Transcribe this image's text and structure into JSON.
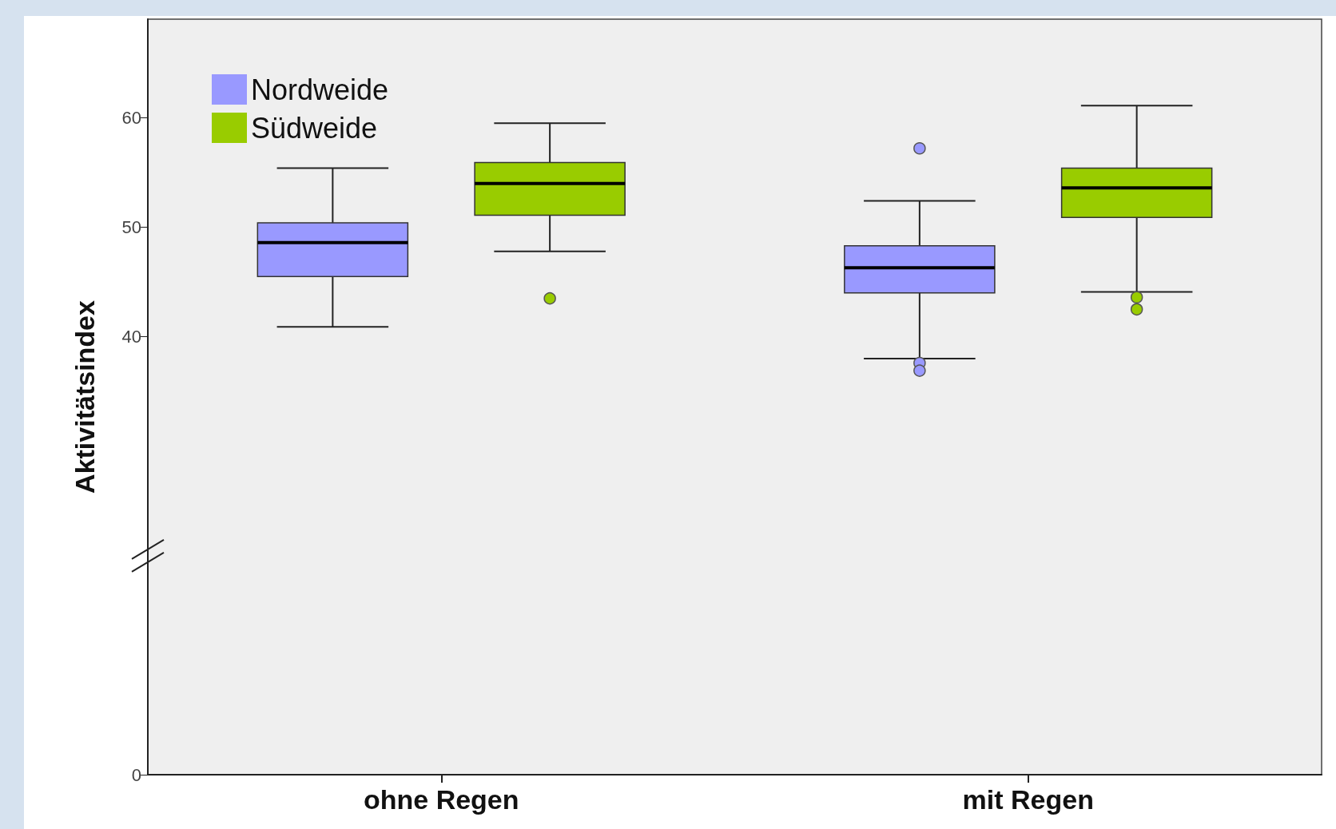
{
  "chart_data": {
    "type": "box",
    "ylabel": "Aktivitätsindex",
    "categories": [
      "ohne Regen",
      "mit Regen"
    ],
    "ylim": [
      0,
      69
    ],
    "yticks": [
      0,
      40,
      50,
      60
    ],
    "grid": false,
    "legend": "top left",
    "series": [
      {
        "name": "Nordweide",
        "color": "#9999ff",
        "boxes": [
          {
            "low": 40.9,
            "q1": 45.5,
            "median": 48.6,
            "q3": 50.4,
            "high": 55.4
          },
          {
            "low": 38.0,
            "q1": 44.0,
            "median": 46.3,
            "q3": 48.3,
            "high": 52.4,
            "outliers": [
              57.2,
              37.6,
              36.9
            ]
          }
        ]
      },
      {
        "name": "Südweide",
        "color": "#99cc00",
        "boxes": [
          {
            "low": 47.8,
            "q1": 51.1,
            "median": 54.0,
            "q3": 55.9,
            "high": 59.5,
            "outliers": [
              43.5
            ]
          },
          {
            "low": 44.1,
            "q1": 50.9,
            "median": 53.6,
            "q3": 55.4,
            "high": 61.1,
            "outliers": [
              43.6,
              42.5
            ]
          }
        ]
      }
    ]
  }
}
